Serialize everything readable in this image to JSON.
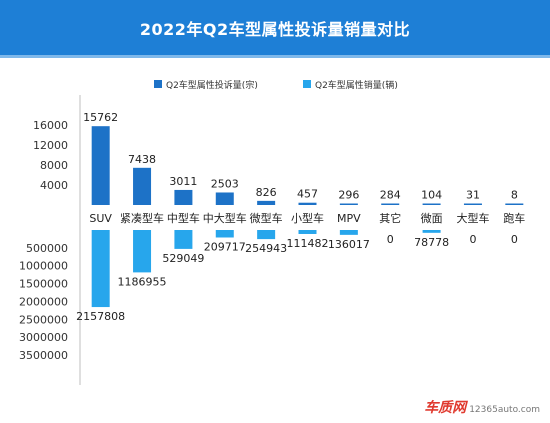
{
  "title": "2022年Q2车型属性投诉量销量对比",
  "watermark": {
    "logo": "车质网",
    "url": "12365auto.com"
  },
  "colors": {
    "header": "#1e7fd6",
    "complaints": "#1d72c7",
    "sales": "#27a6ec"
  },
  "chart_data": [
    {
      "type": "bar",
      "title": "",
      "categories": [
        "SUV",
        "紧凑型车",
        "中型车",
        "中大型车",
        "微型车",
        "小型车",
        "MPV",
        "其它",
        "微面",
        "大型车",
        "跑车"
      ],
      "series": [
        {
          "name": "Q2车型属性投诉量(宗)",
          "values": [
            15762,
            7438,
            3011,
            2503,
            826,
            457,
            296,
            284,
            104,
            31,
            8
          ]
        }
      ],
      "ylim": [
        0,
        17000
      ],
      "yticks": [
        4000,
        8000,
        12000,
        16000
      ],
      "legend": "top-left",
      "grid": false
    },
    {
      "type": "bar",
      "title": "",
      "categories": [
        "SUV",
        "紧凑型车",
        "中型车",
        "中大型车",
        "微型车",
        "小型车",
        "MPV",
        "其它",
        "微面",
        "大型车",
        "跑车"
      ],
      "series": [
        {
          "name": "Q2车型属性销量(辆)",
          "values": [
            2157808,
            1186955,
            529049,
            209717,
            254943,
            111482,
            136017,
            0,
            78778,
            0,
            0
          ]
        }
      ],
      "ylim": [
        0,
        3700000
      ],
      "yticks": [
        500000,
        1000000,
        1500000,
        2000000,
        2500000,
        3000000,
        3500000
      ],
      "legend": "top-right",
      "grid": false,
      "inverted": true
    }
  ]
}
